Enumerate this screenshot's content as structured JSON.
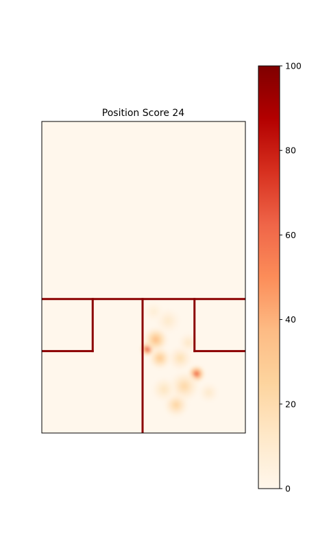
{
  "chart_data": {
    "type": "heatmap",
    "title": "Position Score 24",
    "xlabel": "",
    "ylabel": "",
    "grid": false,
    "colormap": "OrRd",
    "colorbar": {
      "vmin": 0,
      "vmax": 100,
      "ticks": [
        0,
        20,
        40,
        60,
        80,
        100
      ],
      "tick_labels": [
        "0",
        "20",
        "40",
        "60",
        "80",
        "100"
      ]
    },
    "field": {
      "x_range": [
        0,
        100
      ],
      "y_range": [
        0,
        100
      ],
      "line_color": "#8b0000",
      "segments": [
        {
          "name": "horizontal-main-line",
          "x1": 0,
          "y1": 43,
          "x2": 100,
          "y2": 43
        },
        {
          "name": "left-box-right-edge",
          "x1": 25,
          "y1": 43,
          "x2": 25,
          "y2": 26.3
        },
        {
          "name": "left-box-bottom-edge",
          "x1": 0,
          "y1": 26.3,
          "x2": 25,
          "y2": 26.3
        },
        {
          "name": "center-vertical-line",
          "x1": 49.5,
          "y1": 43,
          "x2": 49.5,
          "y2": 0
        },
        {
          "name": "right-box-left-edge",
          "x1": 75,
          "y1": 43,
          "x2": 75,
          "y2": 26.3
        },
        {
          "name": "right-box-bottom-edge",
          "x1": 75,
          "y1": 26.3,
          "x2": 100,
          "y2": 26.3
        }
      ]
    },
    "hotspots": [
      {
        "x": 52,
        "y": 27,
        "intensity": 90,
        "spread": 3.0
      },
      {
        "x": 56,
        "y": 30,
        "intensity": 45,
        "spread": 5.0
      },
      {
        "x": 58,
        "y": 24,
        "intensity": 38,
        "spread": 4.5
      },
      {
        "x": 76,
        "y": 19,
        "intensity": 80,
        "spread": 3.5
      },
      {
        "x": 70,
        "y": 15,
        "intensity": 28,
        "spread": 6.0
      },
      {
        "x": 68,
        "y": 24,
        "intensity": 22,
        "spread": 5.0
      },
      {
        "x": 66,
        "y": 9,
        "intensity": 30,
        "spread": 5.0
      },
      {
        "x": 60,
        "y": 14,
        "intensity": 18,
        "spread": 5.0
      },
      {
        "x": 62,
        "y": 36,
        "intensity": 14,
        "spread": 5.0
      },
      {
        "x": 82,
        "y": 13,
        "intensity": 14,
        "spread": 4.0
      },
      {
        "x": 55,
        "y": 39,
        "intensity": 10,
        "spread": 4.0
      },
      {
        "x": 72,
        "y": 29,
        "intensity": 16,
        "spread": 4.0
      }
    ]
  }
}
